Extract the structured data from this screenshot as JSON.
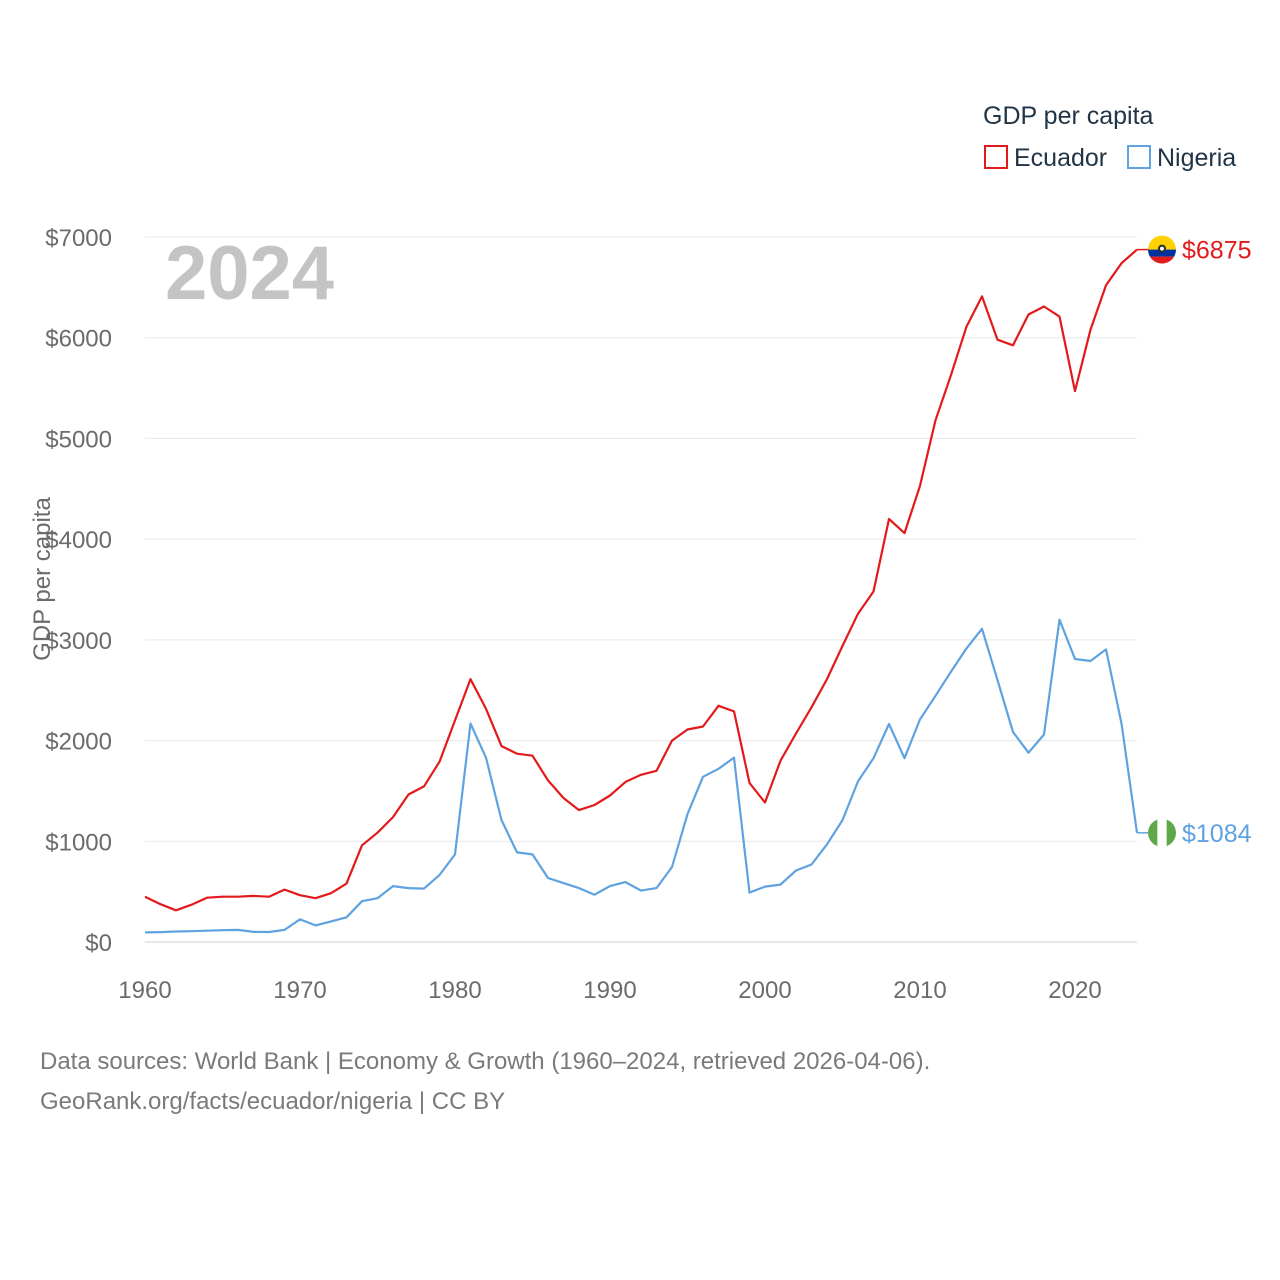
{
  "chart_data": {
    "type": "line",
    "watermark_year": "2024",
    "ylabel": "GDP per capita",
    "legend": {
      "title": "GDP per capita",
      "position": "top-right",
      "entries": [
        "Ecuador",
        "Nigeria"
      ]
    },
    "x_ticks": [
      "1960",
      "1970",
      "1980",
      "1990",
      "2000",
      "2010",
      "2020"
    ],
    "y_ticks": [
      "$0",
      "$1000",
      "$2000",
      "$3000",
      "$4000",
      "$5000",
      "$6000",
      "$7000"
    ],
    "x_range": [
      1960,
      2024
    ],
    "y_range": [
      0,
      7000
    ],
    "x": [
      1960,
      1961,
      1962,
      1963,
      1964,
      1965,
      1966,
      1967,
      1968,
      1969,
      1970,
      1971,
      1972,
      1973,
      1974,
      1975,
      1976,
      1977,
      1978,
      1979,
      1980,
      1981,
      1982,
      1983,
      1984,
      1985,
      1986,
      1987,
      1988,
      1989,
      1990,
      1991,
      1992,
      1993,
      1994,
      1995,
      1996,
      1997,
      1998,
      1999,
      2000,
      2001,
      2002,
      2003,
      2004,
      2005,
      2006,
      2007,
      2008,
      2009,
      2010,
      2011,
      2012,
      2013,
      2014,
      2015,
      2016,
      2017,
      2018,
      2019,
      2020,
      2021,
      2022,
      2023,
      2024
    ],
    "series": [
      {
        "name": "Ecuador",
        "color": "#e31a1c",
        "end_label": "$6875",
        "flag": "ecuador-flag-icon",
        "values": [
          450,
          375,
          315,
          370,
          440,
          450,
          450,
          458,
          450,
          520,
          465,
          435,
          485,
          580,
          960,
          1085,
          1240,
          1465,
          1545,
          1790,
          2200,
          2610,
          2315,
          1945,
          1870,
          1850,
          1605,
          1430,
          1310,
          1360,
          1455,
          1590,
          1660,
          1700,
          2000,
          2110,
          2140,
          2345,
          2290,
          1580,
          1385,
          1800,
          2070,
          2330,
          2610,
          2940,
          3260,
          3480,
          4200,
          4060,
          4530,
          5180,
          5630,
          6110,
          6410,
          5980,
          5925,
          6230,
          6310,
          6210,
          5470,
          6080,
          6520,
          6740,
          6875
        ]
      },
      {
        "name": "Nigeria",
        "color": "#5fa2e0",
        "end_label": "$1084",
        "flag": "nigeria-flag-icon",
        "values": [
          95,
          98,
          104,
          107,
          112,
          117,
          120,
          100,
          99,
          120,
          225,
          165,
          205,
          245,
          405,
          435,
          555,
          535,
          530,
          665,
          870,
          2170,
          1830,
          1210,
          890,
          870,
          635,
          585,
          535,
          470,
          555,
          595,
          510,
          535,
          745,
          1270,
          1640,
          1720,
          1830,
          490,
          550,
          570,
          710,
          770,
          970,
          1210,
          1595,
          1825,
          2165,
          1825,
          2210,
          2445,
          2685,
          2915,
          3110,
          2600,
          2085,
          1880,
          2060,
          3200,
          2810,
          2790,
          2905,
          2170,
          1084
        ]
      }
    ]
  },
  "footer": {
    "line1": "Data sources: World Bank | Economy & Growth (1960–2024, retrieved 2026-04-06).",
    "line2": "GeoRank.org/facts/ecuador/nigeria | CC BY"
  }
}
